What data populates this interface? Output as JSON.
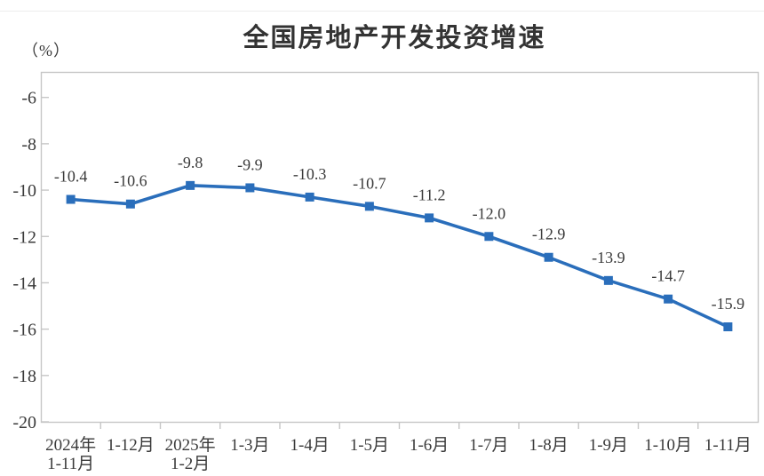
{
  "chart_data": {
    "type": "line",
    "title": "全国房地产开发投资增速",
    "unit_label": "（%）",
    "categories": [
      [
        "2024年",
        "1-11月"
      ],
      [
        "1-12月"
      ],
      [
        "2025年",
        "1-2月"
      ],
      [
        "1-3月"
      ],
      [
        "1-4月"
      ],
      [
        "1-5月"
      ],
      [
        "1-6月"
      ],
      [
        "1-7月"
      ],
      [
        "1-8月"
      ],
      [
        "1-9月"
      ],
      [
        "1-10月"
      ],
      [
        "1-11月"
      ]
    ],
    "values": [
      -10.4,
      -10.6,
      -9.8,
      -9.9,
      -10.3,
      -10.7,
      -11.2,
      -12.0,
      -12.9,
      -13.9,
      -14.7,
      -15.9
    ],
    "point_labels": [
      "-10.4",
      "-10.6",
      "-9.8",
      "-9.9",
      "-10.3",
      "-10.7",
      "-11.2",
      "-12.0",
      "-12.9",
      "-13.9",
      "-14.7",
      "-15.9"
    ],
    "ylim": [
      -20,
      -4.9
    ],
    "yticks": [
      "-6",
      "-8",
      "-10",
      "-12",
      "-14",
      "-16",
      "-18",
      "-20"
    ],
    "line_color": "#2a6ebb",
    "marker": "square",
    "grid": false,
    "legend": "none",
    "axis_color": "#c6c6c6",
    "text_color": "#3a3a3a"
  }
}
